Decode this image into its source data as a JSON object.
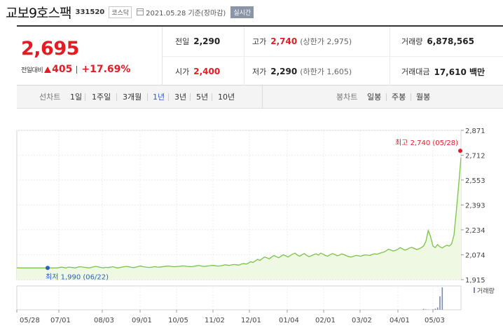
{
  "header": {
    "stock_name": "교보9호스팩",
    "stock_code": "331520",
    "market_badge": "코스닥",
    "date_text": "2021.05.28 기준(장마감)",
    "live_badge": "실시간"
  },
  "price": {
    "current": "2,695",
    "change_label": "전일대비",
    "change_value": "405",
    "change_pct": "+17.69%",
    "direction": "up",
    "up_color": "#e51b24"
  },
  "stats": {
    "prev_close": {
      "label": "전일",
      "value": "2,290"
    },
    "open": {
      "label": "시가",
      "value": "2,400"
    },
    "high": {
      "label": "고가",
      "value": "2,740",
      "sub": "(상한가 2,975)"
    },
    "low": {
      "label": "저가",
      "value": "2,290",
      "sub": "(하한가 1,605)"
    },
    "volume": {
      "label": "거래량",
      "value": "6,878,565"
    },
    "amount": {
      "label": "거래대금",
      "value": "17,610 백만"
    }
  },
  "line_chart_bar": {
    "label": "선차트",
    "periods": [
      "1일",
      "1주일",
      "3개월",
      "1년",
      "3년",
      "5년",
      "10년"
    ],
    "active": "1년"
  },
  "candle_chart_bar": {
    "label": "봉차트",
    "options": [
      "일봉",
      "주봉",
      "월봉"
    ]
  },
  "chart_data": {
    "type": "area",
    "x_ticks": [
      "05/28",
      "07/01",
      "08/03",
      "09/01",
      "10/05",
      "11/02",
      "12/01",
      "01/04",
      "02/01",
      "03/02",
      "04/01",
      "05/03"
    ],
    "y_ticks": [
      "2,871",
      "2,712",
      "2,553",
      "2,393",
      "2,234",
      "2,074",
      "1,915"
    ],
    "ylim": [
      1915,
      2871
    ],
    "line_color": "#7bc34a",
    "fill_color": "#eef8e2",
    "volume_label": "거래량",
    "volume_color": "#7b89b8",
    "annotations": {
      "high": {
        "text": "최고 2,740 (05/28)",
        "value": 2740,
        "color": "#e51b24"
      },
      "low": {
        "text": "최저 1,990 (06/22)",
        "value": 1990,
        "color": "#2662c4"
      }
    },
    "series": [
      {
        "values": [
          1990,
          1990,
          1990,
          1990,
          1990,
          1990,
          1990,
          1990,
          1990,
          1990,
          1990,
          1990,
          1990,
          1990,
          1990,
          1990,
          1990,
          1990,
          1992,
          1995,
          1993,
          1990,
          1996,
          1994,
          1992,
          1990,
          1995,
          1998,
          1996,
          1994,
          1992,
          1990,
          1994,
          1998,
          2000,
          1996,
          1993,
          1990,
          1994,
          1992,
          1995,
          1998,
          1994,
          1990,
          1992,
          1996,
          1998,
          2000,
          1997,
          1994,
          1992,
          1995,
          2000,
          2002,
          1998,
          1996,
          1994,
          1993,
          1996,
          1998,
          1996,
          1995,
          1997,
          1999,
          2001,
          2002,
          2000,
          1998,
          1998,
          2000,
          2001,
          2003,
          2002,
          2000,
          1999,
          1998,
          2001,
          2004,
          2005,
          2002,
          2000,
          2001,
          2003,
          2005,
          2006,
          2004,
          2002,
          2003,
          2006,
          2010,
          2008,
          2006,
          2010,
          2012,
          2010,
          2008,
          2014,
          2018,
          2015,
          2020,
          2030,
          2025,
          2035,
          2045,
          2038,
          2050,
          2060,
          2055,
          2048,
          2060,
          2070,
          2062,
          2055,
          2065,
          2075,
          2068,
          2060,
          2070,
          2078,
          2085,
          2072,
          2065,
          2075,
          2082,
          2070,
          2062,
          2068,
          2075,
          2080,
          2072,
          2085,
          2078,
          2070,
          2065,
          2074,
          2082,
          2076,
          2068,
          2072,
          2080,
          2075,
          2068,
          2062,
          2060,
          2064,
          2070,
          2068,
          2065,
          2070,
          2074,
          2072,
          2070,
          2076,
          2080,
          2078,
          2083,
          2088,
          2092,
          2100,
          2110,
          2105,
          2098,
          2102,
          2110,
          2120,
          2112,
          2104,
          2110,
          2118,
          2122,
          2115,
          2108,
          2112,
          2120,
          2130,
          2160,
          2230,
          2190,
          2130,
          2120,
          2140,
          2125,
          2118,
          2128,
          2135,
          2130,
          2145,
          2200,
          2350,
          2520,
          2695
        ]
      }
    ],
    "volume": [
      0,
      0,
      0,
      0,
      0,
      0,
      0,
      0,
      0,
      0,
      0,
      0,
      0,
      0,
      0,
      0,
      0,
      0,
      0,
      0,
      0,
      0,
      0,
      0,
      0,
      0,
      0,
      0,
      0,
      0,
      0,
      0,
      0,
      0,
      0,
      0,
      0,
      0,
      0,
      0,
      0,
      0,
      0,
      0,
      0,
      0,
      0,
      0,
      0,
      0,
      0,
      0,
      0,
      0,
      0,
      0,
      0,
      0,
      0,
      0,
      0,
      0,
      0,
      0,
      0,
      0,
      0,
      0,
      0,
      0,
      0,
      0,
      0,
      0,
      0,
      0,
      0,
      0,
      0,
      0,
      0,
      0,
      0,
      0,
      0,
      0,
      0,
      0,
      0,
      0,
      0,
      0,
      0,
      0,
      0,
      0,
      0,
      0,
      0,
      0,
      0,
      0,
      0,
      0,
      0,
      0,
      0,
      0,
      0,
      0,
      0,
      0,
      0,
      0,
      0,
      0,
      0,
      0,
      0,
      0,
      0,
      0,
      0,
      0,
      0,
      0,
      0,
      0,
      0,
      0,
      0,
      0,
      0,
      0,
      0,
      0,
      0,
      0,
      0,
      0,
      0,
      0,
      0,
      0,
      0,
      0,
      0,
      0,
      0,
      0,
      0,
      0,
      0,
      0,
      0,
      0,
      0,
      0,
      0,
      0,
      0,
      0,
      0,
      0,
      0,
      0,
      0,
      0,
      0,
      0,
      0,
      0,
      0,
      0,
      0.04,
      0.02,
      0.01,
      0,
      0.02,
      0.05,
      0.1,
      0.6,
      1.0
    ]
  }
}
